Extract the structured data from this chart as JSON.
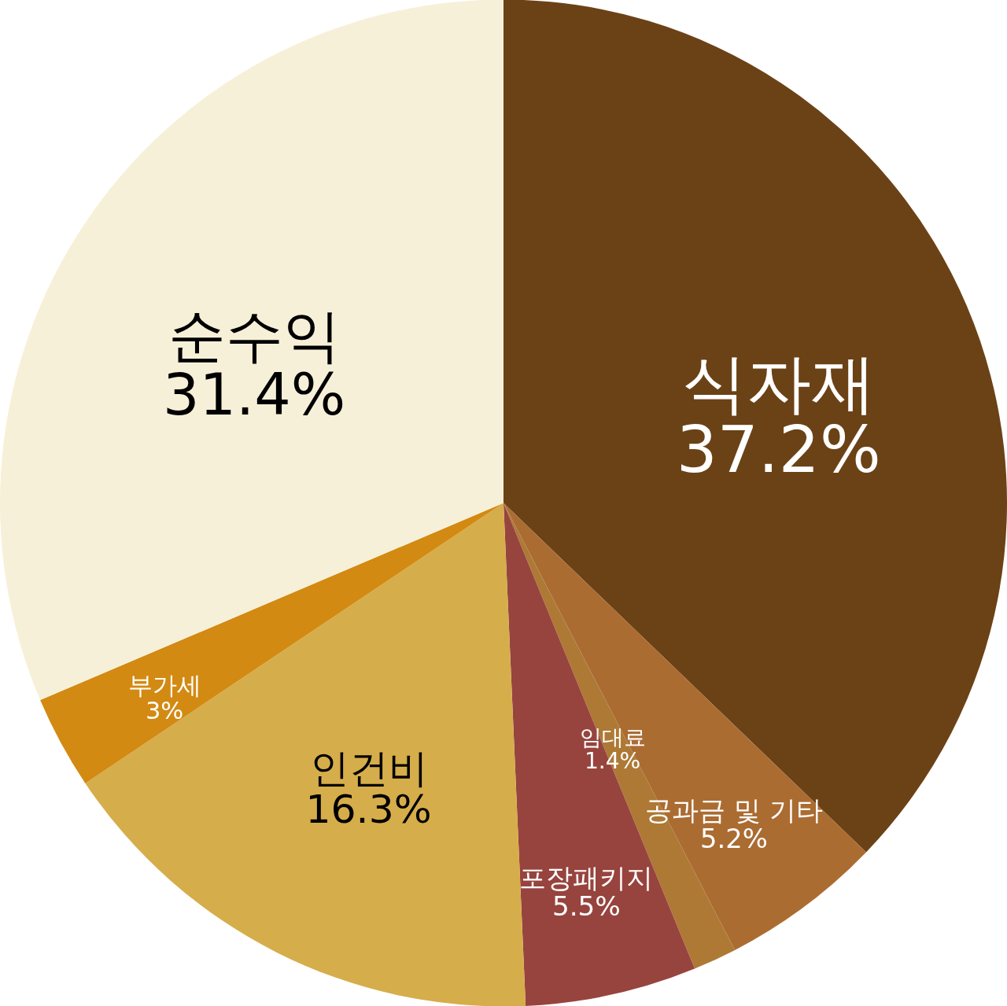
{
  "chart_data": {
    "type": "pie",
    "categories": [
      "식자재",
      "공과금 및 기타",
      "임대료",
      "포장패키지",
      "인건비",
      "부가세",
      "순수익"
    ],
    "values": [
      37.2,
      5.2,
      1.4,
      5.5,
      16.3,
      3,
      31.4
    ],
    "value_labels": [
      "37.2%",
      "5.2%",
      "1.4%",
      "5.5%",
      "16.3%",
      "3%",
      "31.4%"
    ],
    "colors": [
      "#6b4216",
      "#ab6c32",
      "#ae7935",
      "#97443e",
      "#d6ad4b",
      "#d38a12",
      "#f7f0d8"
    ]
  }
}
